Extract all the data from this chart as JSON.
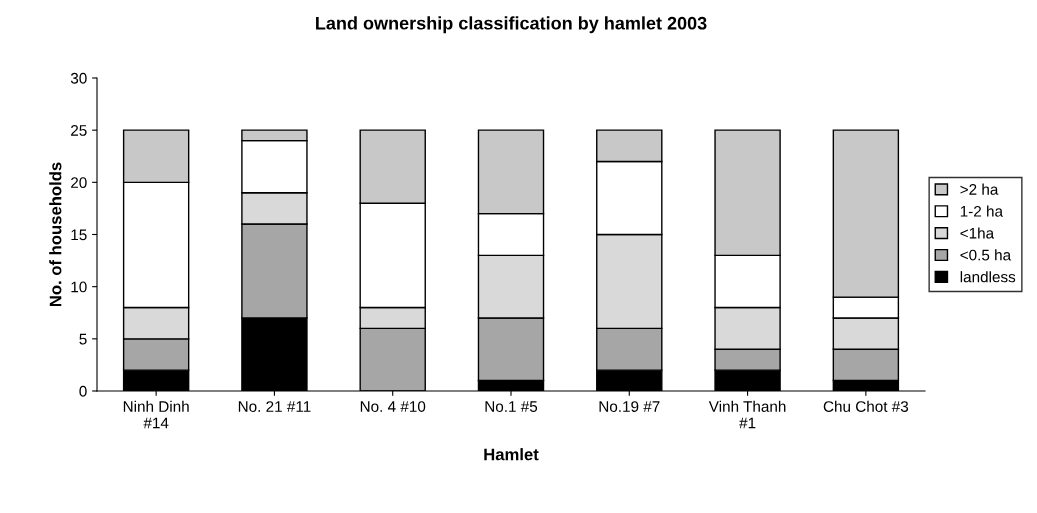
{
  "chart_data": {
    "type": "bar",
    "stacked": true,
    "title": "Land ownership classification by hamlet 2003",
    "xlabel": "Hamlet",
    "ylabel": "No. of households",
    "categories": [
      "Ninh Dinh\n#14",
      "No. 21 #11",
      "No. 4 #10",
      "No.1 #5",
      "No.19 #7",
      "Vinh Thanh\n#1",
      "Chu Chot #3"
    ],
    "series": [
      {
        "name": "landless",
        "color": "#000000",
        "values": [
          2,
          7,
          0,
          1,
          2,
          2,
          1
        ]
      },
      {
        "name": "<0.5 ha",
        "color": "#a6a6a6",
        "values": [
          3,
          9,
          6,
          6,
          4,
          2,
          3
        ]
      },
      {
        "name": "<1ha",
        "color": "#d9d9d9",
        "values": [
          3,
          3,
          2,
          6,
          9,
          4,
          3
        ]
      },
      {
        "name": "1-2 ha",
        "color": "#ffffff",
        "values": [
          12,
          5,
          10,
          4,
          7,
          5,
          2
        ]
      },
      {
        "name": ">2 ha",
        "color": "#c8c8c8",
        "values": [
          5,
          1,
          7,
          8,
          3,
          12,
          16
        ]
      }
    ],
    "ylim": [
      0,
      30
    ],
    "yticks": [
      0,
      5,
      10,
      15,
      20,
      25,
      30
    ],
    "grid": false,
    "legend": "right"
  }
}
